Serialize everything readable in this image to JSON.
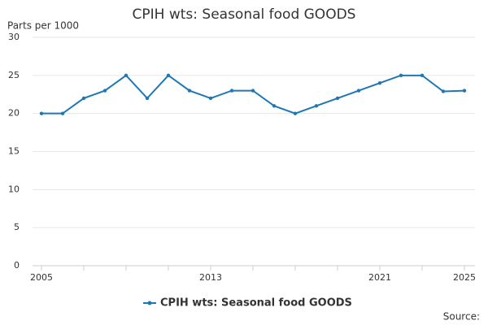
{
  "chart_data": {
    "type": "line",
    "title": "CPIH wts: Seasonal food GOODS",
    "y_axis_label": "Parts per 1000",
    "categories": [
      "2005",
      null,
      null,
      null,
      null,
      null,
      null,
      null,
      "2013",
      null,
      null,
      null,
      null,
      null,
      null,
      null,
      "2021",
      null,
      null,
      null,
      "2025"
    ],
    "series": [
      {
        "name": "CPIH wts: Seasonal food GOODS",
        "color": "#1f77b4",
        "values": [
          20,
          20,
          22,
          23,
          25,
          22,
          25,
          23,
          22,
          23,
          23,
          21,
          20,
          21,
          22,
          23,
          24,
          25,
          25,
          22.9,
          23
        ]
      }
    ],
    "ylim": [
      0,
      30
    ],
    "yticks": [
      0,
      5,
      10,
      15,
      20,
      25,
      30
    ],
    "grid": true,
    "legend": "bottom",
    "source": "Source:"
  }
}
